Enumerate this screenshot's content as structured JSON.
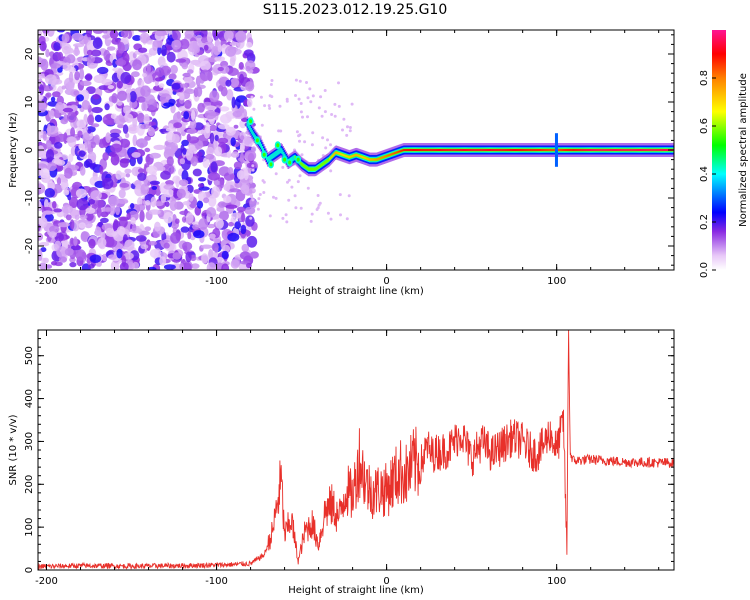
{
  "title": "S115.2023.012.19.25.G10",
  "colors": {
    "snr_line": "#e8302a",
    "axis": "#000000",
    "background": "#ffffff",
    "colormap": [
      "#f0d8f8",
      "#a020f0",
      "#5a00e8",
      "#0000ff",
      "#00ffff",
      "#00ff00",
      "#ffff00",
      "#ff8c00",
      "#ff0000",
      "#ff1493"
    ]
  },
  "chart_data": [
    {
      "type": "heatmap",
      "title": "",
      "xlabel": "Height of straight line (km)",
      "ylabel": "Frequency (Hz)",
      "xlim": [
        -205,
        169
      ],
      "ylim": [
        -25,
        25
      ],
      "xticks": [
        -200,
        -100,
        0,
        100
      ],
      "yticks": [
        -20,
        -10,
        0,
        10,
        20
      ],
      "ytick_labels": [
        "-20",
        "-10",
        "0",
        "10",
        "20"
      ],
      "grid": false,
      "colorbar": {
        "label": "Normalized spectral amplitude",
        "range": [
          0,
          1
        ],
        "ticks": [
          0.0,
          0.2,
          0.4,
          0.6,
          0.8
        ],
        "tick_labels": [
          "0.0",
          "0.2",
          "0.4",
          "0.6",
          "0.8"
        ],
        "placement": "right"
      },
      "noise_region_x": [
        -205,
        -80
      ],
      "signal_track": {
        "x": [
          -82,
          -78,
          -74,
          -70,
          -66,
          -62,
          -58,
          -54,
          -50,
          -46,
          -42,
          -38,
          -34,
          -30,
          -26,
          -22,
          -18,
          -14,
          -10,
          -6,
          -2,
          2,
          6,
          10,
          20,
          40,
          60,
          80,
          100,
          120,
          140,
          169
        ],
        "freq": [
          5.5,
          3,
          1,
          -2,
          -1,
          0,
          -2.5,
          -1.5,
          -3,
          -4,
          -4,
          -3,
          -2,
          -0.5,
          -1,
          -1.5,
          -1,
          -1.5,
          -2,
          -2,
          -1.5,
          -1,
          -0.5,
          0,
          0,
          0,
          0,
          0,
          0,
          0,
          0,
          0
        ],
        "amplitude": [
          0.35,
          0.4,
          0.3,
          0.35,
          0.4,
          0.35,
          0.45,
          0.5,
          0.6,
          0.65,
          0.7,
          0.65,
          0.7,
          0.75,
          0.7,
          0.72,
          0.75,
          0.72,
          0.75,
          0.78,
          0.8,
          0.82,
          0.85,
          0.9,
          0.9,
          0.92,
          0.92,
          0.9,
          0.85,
          0.95,
          0.95,
          0.95
        ]
      }
    },
    {
      "type": "line",
      "title": "",
      "xlabel": "Height of straight line (km)",
      "ylabel": "SNR (10 * v/v)",
      "xlim": [
        -205,
        169
      ],
      "ylim": [
        0,
        560
      ],
      "xticks": [
        -200,
        -100,
        0,
        100
      ],
      "yticks": [
        0,
        100,
        200,
        300,
        400,
        500
      ],
      "grid": false,
      "series": [
        {
          "x": [
            -205,
            -180,
            -150,
            -120,
            -95,
            -80,
            -72,
            -67,
            -62,
            -60,
            -56,
            -52,
            -48,
            -44,
            -40,
            -36,
            -32,
            -28,
            -24,
            -20,
            -16,
            -12,
            -8,
            -4,
            0,
            4,
            8,
            12,
            16,
            20,
            24,
            26,
            30,
            36,
            44,
            50,
            56,
            62,
            68,
            74,
            80,
            84,
            88,
            92,
            96,
            100,
            104,
            106,
            107,
            108,
            110,
            120,
            140,
            169
          ],
          "y": [
            8,
            10,
            9,
            10,
            12,
            15,
            35,
            90,
            210,
            80,
            120,
            20,
            90,
            110,
            60,
            140,
            150,
            120,
            190,
            170,
            260,
            200,
            180,
            190,
            185,
            210,
            230,
            220,
            250,
            245,
            290,
            270,
            275,
            280,
            320,
            260,
            300,
            270,
            290,
            310,
            300,
            280,
            270,
            290,
            320,
            280,
            350,
            40,
            560,
            270,
            255,
            258,
            252,
            250
          ]
        }
      ]
    }
  ]
}
